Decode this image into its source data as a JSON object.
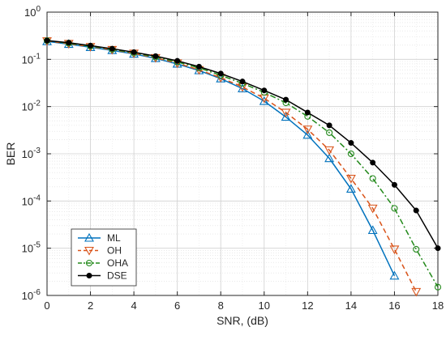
{
  "chart_data": {
    "type": "line",
    "title": "",
    "xlabel": "SNR, (dB)",
    "ylabel": "BER",
    "xlim": [
      0,
      18
    ],
    "ylim": [
      1e-06,
      1
    ],
    "yscale": "log",
    "grid": true,
    "minor_grid": true,
    "legend_position": "lower-left",
    "x_ticks": [
      "0",
      "2",
      "4",
      "6",
      "8",
      "10",
      "12",
      "14",
      "16",
      "18"
    ],
    "y_ticks": [
      {
        "base": "10",
        "exp": "0"
      },
      {
        "base": "10",
        "exp": "-1"
      },
      {
        "base": "10",
        "exp": "-2"
      },
      {
        "base": "10",
        "exp": "-3"
      },
      {
        "base": "10",
        "exp": "-4"
      },
      {
        "base": "10",
        "exp": "-5"
      },
      {
        "base": "10",
        "exp": "-6"
      }
    ],
    "series": [
      {
        "name": "ML",
        "color": "#0072BD",
        "dash": "solid",
        "marker": "triangle-up",
        "x": [
          0,
          1,
          2,
          3,
          4,
          5,
          6,
          7,
          8,
          9,
          10,
          11,
          12,
          13,
          14,
          15,
          16
        ],
        "y": [
          0.24,
          0.21,
          0.18,
          0.155,
          0.13,
          0.105,
          0.08,
          0.058,
          0.039,
          0.024,
          0.013,
          0.006,
          0.0025,
          0.0008,
          0.00018,
          2.4e-05,
          2.6e-06
        ]
      },
      {
        "name": "OH",
        "color": "#D95319",
        "dash": "dashed",
        "marker": "triangle-down",
        "x": [
          0,
          1,
          2,
          3,
          4,
          5,
          6,
          7,
          8,
          9,
          10,
          11,
          12,
          13,
          14,
          15,
          16,
          17
        ],
        "y": [
          0.245,
          0.215,
          0.185,
          0.16,
          0.134,
          0.108,
          0.083,
          0.06,
          0.041,
          0.026,
          0.015,
          0.0075,
          0.0033,
          0.0012,
          0.0003,
          7e-05,
          9.5e-06,
          1.2e-06
        ]
      },
      {
        "name": "OHA",
        "color": "#22891A",
        "dash": "dashdot",
        "marker": "circle-open",
        "x": [
          0,
          1,
          2,
          3,
          4,
          5,
          6,
          7,
          8,
          9,
          10,
          11,
          12,
          13,
          14,
          15,
          16,
          17,
          18
        ],
        "y": [
          0.25,
          0.22,
          0.19,
          0.163,
          0.137,
          0.112,
          0.088,
          0.066,
          0.046,
          0.031,
          0.02,
          0.012,
          0.0062,
          0.0028,
          0.001,
          0.0003,
          7e-05,
          9.5e-06,
          1.5e-06
        ]
      },
      {
        "name": "DSE",
        "color": "#000000",
        "dash": "solid",
        "marker": "dot",
        "x": [
          0,
          1,
          2,
          3,
          4,
          5,
          6,
          7,
          8,
          9,
          10,
          11,
          12,
          13,
          14,
          15,
          16,
          17,
          18
        ],
        "y": [
          0.25,
          0.225,
          0.195,
          0.168,
          0.142,
          0.117,
          0.093,
          0.07,
          0.05,
          0.034,
          0.022,
          0.014,
          0.0075,
          0.004,
          0.0017,
          0.00065,
          0.00022,
          6.3e-05,
          1e-05
        ]
      }
    ]
  }
}
